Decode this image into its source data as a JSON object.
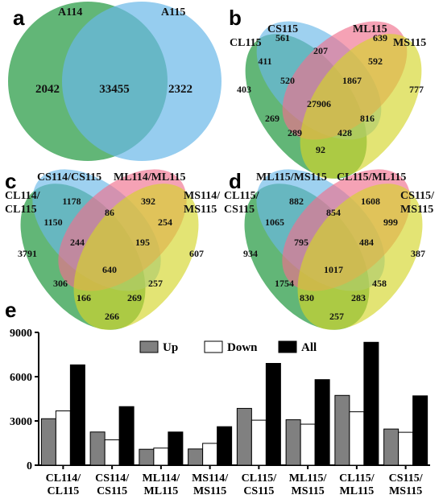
{
  "panels": {
    "a": "a",
    "b": "b",
    "c": "c",
    "d": "d",
    "e": "e"
  },
  "colors": {
    "green": "#2e9e4a",
    "blue": "#6ab8e8",
    "pink": "#f0708e",
    "yellow": "#d4d62a",
    "up": "#808080",
    "down": "#ffffff",
    "all": "#000000"
  },
  "venn_a": {
    "set_labels": [
      "A114",
      "A115"
    ],
    "values": [
      "2042",
      "33455",
      "2322"
    ]
  },
  "venn_b": {
    "set_labels": [
      "CS115",
      "ML115",
      "CL115",
      "MS115"
    ],
    "values": [
      "561",
      "639",
      "411",
      "207",
      "592",
      "403",
      "520",
      "1867",
      "777",
      "27906",
      "269",
      "816",
      "289",
      "428",
      "92"
    ]
  },
  "venn_c": {
    "set_labels": [
      "CS114/CS115",
      "ML114/ML115",
      "CL114/",
      "CL115",
      "MS114/",
      "MS115"
    ],
    "values": [
      "1178",
      "392",
      "1150",
      "86",
      "254",
      "3791",
      "244",
      "195",
      "607",
      "640",
      "306",
      "257",
      "166",
      "269",
      "266"
    ]
  },
  "venn_d": {
    "set_labels": [
      "ML115/MS115",
      "CL115/ML115",
      "CL115/",
      "CS115",
      "CS115/",
      "MS115"
    ],
    "values": [
      "882",
      "1608",
      "1065",
      "854",
      "999",
      "934",
      "795",
      "484",
      "387",
      "1017",
      "1754",
      "458",
      "830",
      "283",
      "257"
    ]
  },
  "chart_data": {
    "type": "bar",
    "categories": [
      "CL114/CL115",
      "CS114/CS115",
      "ML114/ML115",
      "MS114/MS115",
      "CL115/CS115",
      "ML115/MS115",
      "CL115/ML115",
      "CS115/MS115"
    ],
    "category_lines": [
      [
        "CL114/",
        "CL115"
      ],
      [
        "CS114/",
        "CS115"
      ],
      [
        "ML114/",
        "ML115"
      ],
      [
        "MS114/",
        "MS115"
      ],
      [
        "CL115/",
        "CS115"
      ],
      [
        "ML115/",
        "MS115"
      ],
      [
        "CL115/",
        "ML115"
      ],
      [
        "CS115/",
        "MS115"
      ]
    ],
    "series": [
      {
        "name": "Up",
        "values": [
          3150,
          2250,
          1080,
          1100,
          3850,
          3080,
          4730,
          2450
        ]
      },
      {
        "name": "Down",
        "values": [
          3680,
          1720,
          1160,
          1480,
          3050,
          2780,
          3620,
          2230
        ]
      },
      {
        "name": "All",
        "values": [
          6800,
          3970,
          2250,
          2610,
          6900,
          5800,
          8330,
          4700
        ]
      }
    ],
    "ylim": [
      0,
      9000
    ],
    "yticks": [
      "0",
      "3000",
      "6000",
      "9000"
    ],
    "legend_position": "top-center"
  }
}
